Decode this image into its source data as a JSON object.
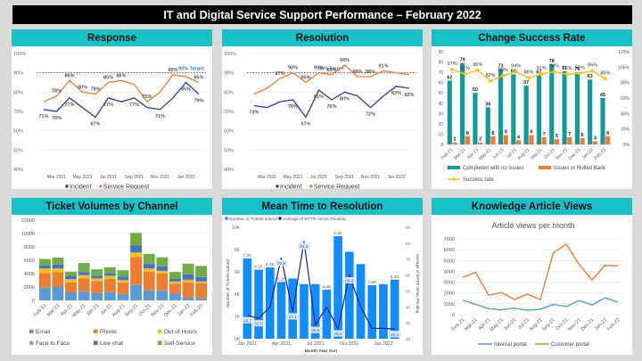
{
  "page_title": "IT and Digital Service Support Performance – February 2022",
  "panels": {
    "response": "Response",
    "resolution": "Resolution",
    "change": "Change Success Rate",
    "tickets": "Ticket Volumes by Channel",
    "mttr": "Mean Time to Resolution",
    "knowledge": "Knowledge Article Views"
  },
  "colors": {
    "teal_header": "#17c1c6",
    "incident": "#2e3a9c",
    "service_request": "#ed7d31",
    "target": "#7f1f2f",
    "target_label": "#2f7fd0"
  },
  "chart_data": [
    {
      "id": "response",
      "type": "line",
      "title": "Response",
      "x": [
        "Feb 2021",
        "Mar 2021",
        "Apr 2021",
        "May 2021",
        "Jun 2021",
        "Jul 2021",
        "Aug 2021",
        "Sep 2021",
        "Oct 2021",
        "Nov 2021",
        "Dec 2021",
        "Jan 2022",
        "Feb 2022"
      ],
      "x_tick_labels": [
        "Mar 2021",
        "May 2021",
        "Jul 2021",
        "Sep 2021",
        "Nov 2021",
        "Jan 2022"
      ],
      "ylim": [
        40,
        100
      ],
      "y_ticks": [
        "40%",
        "50%",
        "60%",
        "70%",
        "80%",
        "90%",
        "100%"
      ],
      "target": 90,
      "target_label": "90% Target",
      "series": [
        {
          "name": "Incident",
          "values": [
            71,
            70,
            77,
            72,
            67,
            77,
            75,
            77,
            72,
            71,
            77,
            85,
            79
          ]
        },
        {
          "name": "Service Request",
          "values": [
            75,
            78,
            86,
            80,
            79,
            85,
            86,
            84,
            75,
            80,
            89,
            88,
            85
          ]
        }
      ],
      "data_labels": [
        {
          "series": 0,
          "index": 0,
          "text": "71%"
        },
        {
          "series": 0,
          "index": 1,
          "text": "70%"
        },
        {
          "series": 0,
          "index": 2,
          "text": "77%"
        },
        {
          "series": 0,
          "index": 4,
          "text": "67%"
        },
        {
          "series": 0,
          "index": 5,
          "text": "77%"
        },
        {
          "series": 0,
          "index": 7,
          "text": "77%"
        },
        {
          "series": 0,
          "index": 9,
          "text": "71%"
        },
        {
          "series": 0,
          "index": 11,
          "text": "85%"
        },
        {
          "series": 0,
          "index": 12,
          "text": "79%"
        },
        {
          "series": 1,
          "index": 1,
          "text": "78%"
        },
        {
          "series": 1,
          "index": 2,
          "text": "86%"
        },
        {
          "series": 1,
          "index": 3,
          "text": "80%"
        },
        {
          "series": 1,
          "index": 4,
          "text": "79%"
        },
        {
          "series": 1,
          "index": 5,
          "text": "85%"
        },
        {
          "series": 1,
          "index": 6,
          "text": "86%"
        },
        {
          "series": 1,
          "index": 8,
          "text": "75%"
        },
        {
          "series": 1,
          "index": 10,
          "text": "89%"
        },
        {
          "series": 1,
          "index": 12,
          "text": "85%"
        }
      ],
      "legend": [
        "Incident",
        "Service Request"
      ],
      "legend_position": "bottom"
    },
    {
      "id": "resolution",
      "type": "line",
      "title": "Resolution",
      "x": [
        "Feb 2021",
        "Mar 2021",
        "Apr 2021",
        "May 2021",
        "Jun 2021",
        "Jul 2021",
        "Aug 2021",
        "Sep 2021",
        "Oct 2021",
        "Nov 2021",
        "Dec 2021",
        "Jan 2022",
        "Feb 2022"
      ],
      "x_tick_labels": [
        "Mar 2021",
        "May 2021",
        "Jul 2021",
        "Sep 2021",
        "Nov 2021",
        "Jan 2022"
      ],
      "ylim": [
        40,
        100
      ],
      "y_ticks": [
        "40%",
        "50%",
        "60%",
        "70%",
        "80%",
        "90%",
        "100%"
      ],
      "target": 90,
      "target_label": "90% Target",
      "series": [
        {
          "name": "Incident",
          "values": [
            73,
            72,
            75,
            76,
            67,
            81,
            76,
            80,
            78,
            72,
            78,
            83,
            82
          ]
        },
        {
          "name": "Service Request",
          "values": [
            79,
            82,
            87,
            90,
            85,
            90,
            89,
            94,
            88,
            88,
            91,
            90,
            89
          ]
        }
      ],
      "data_labels": [
        {
          "series": 0,
          "index": 0,
          "text": "73%"
        },
        {
          "series": 0,
          "index": 3,
          "text": "76%"
        },
        {
          "series": 0,
          "index": 4,
          "text": "67%"
        },
        {
          "series": 0,
          "index": 5,
          "text": "81%"
        },
        {
          "series": 0,
          "index": 6,
          "text": "76%"
        },
        {
          "series": 0,
          "index": 7,
          "text": "80%"
        },
        {
          "series": 0,
          "index": 9,
          "text": "72%"
        },
        {
          "series": 0,
          "index": 11,
          "text": "83%"
        },
        {
          "series": 0,
          "index": 12,
          "text": "82%"
        },
        {
          "series": 1,
          "index": 2,
          "text": "87%"
        },
        {
          "series": 1,
          "index": 3,
          "text": "90%"
        },
        {
          "series": 1,
          "index": 4,
          "text": "85%"
        },
        {
          "series": 1,
          "index": 5,
          "text": "90%"
        },
        {
          "series": 1,
          "index": 6,
          "text": "89%"
        },
        {
          "series": 1,
          "index": 7,
          "text": "94%"
        },
        {
          "series": 1,
          "index": 8,
          "text": "88%"
        },
        {
          "series": 1,
          "index": 9,
          "text": "88%"
        },
        {
          "series": 1,
          "index": 10,
          "text": "91%"
        }
      ],
      "legend": [
        "Incident",
        "Service Request"
      ],
      "legend_position": "bottom"
    },
    {
      "id": "change",
      "type": "bar",
      "title": "Change Success Rate",
      "categories": [
        "Feb-21",
        "Mar-21",
        "Apr-21",
        "May-21",
        "Jun-21",
        "Jul-21",
        "Aug-21",
        "Sep-21",
        "Oct-21",
        "Nov-21",
        "Dec-21",
        "Jan-22",
        "Feb-22"
      ],
      "ylim": [
        0,
        90
      ],
      "y_ticks": [
        "0",
        "10",
        "20",
        "30",
        "40",
        "50",
        "60",
        "70",
        "80",
        "90"
      ],
      "y2lim": [
        0,
        120
      ],
      "y2_ticks": [
        "0%",
        "20%",
        "40%",
        "60%",
        "80%",
        "100%",
        "120%"
      ],
      "series": [
        {
          "name": "Completed with no issues",
          "type": "bar",
          "color": "#13999a",
          "values": [
            62,
            79,
            50,
            36,
            73,
            68,
            57,
            67,
            78,
            71,
            70,
            63,
            45
          ]
        },
        {
          "name": "Issues or Rolled Back",
          "type": "bar",
          "color": "#ed7d31",
          "values": [
            2,
            8,
            2,
            8,
            9,
            4,
            9,
            7,
            5,
            7,
            6,
            3,
            8
          ]
        },
        {
          "name": "Success rate",
          "type": "line",
          "axis": "secondary",
          "color": "#f5c518",
          "values": [
            97,
            91,
            96,
            82,
            89,
            94,
            86,
            91,
            94,
            91,
            92,
            95,
            85
          ]
        }
      ],
      "legend": [
        "Completed with no issues",
        "Issues or Rolled Back",
        "Success rate"
      ],
      "legend_position": "bottom"
    },
    {
      "id": "tickets",
      "type": "bar",
      "stacked": true,
      "title": "Ticket Volumes by Channel",
      "categories": [
        "Feb-21",
        "Mar-21",
        "Apr-21",
        "May-21",
        "Jun-21",
        "Jul-21",
        "Aug-21",
        "Sep-21",
        "Oct-21",
        "Nov-21",
        "Dec-21",
        "Jan-22",
        "Feb-22"
      ],
      "ylim": [
        0,
        12000
      ],
      "y_ticks": [
        "0",
        "2000",
        "4000",
        "6000",
        "8000",
        "10000",
        "12000"
      ],
      "series": [
        {
          "name": "Email",
          "color": "#5b9bd5",
          "values": [
            1900,
            2000,
            1200,
            1350,
            1100,
            1250,
            950,
            2300,
            1500,
            1500,
            1000,
            450,
            350
          ]
        },
        {
          "name": "Phone",
          "color": "#ed7d31",
          "values": [
            2200,
            2200,
            1500,
            1950,
            1800,
            1950,
            1700,
            4200,
            2800,
            2500,
            1500,
            2200,
            2200
          ]
        },
        {
          "name": "Out of Hours",
          "color": "#ffc000",
          "values": [
            600,
            500,
            400,
            400,
            300,
            400,
            300,
            600,
            400,
            350,
            250,
            350,
            200
          ]
        },
        {
          "name": "Face to Face",
          "color": "#a5a5a5",
          "values": [
            100,
            100,
            100,
            100,
            100,
            100,
            100,
            100,
            100,
            100,
            100,
            100,
            100
          ]
        },
        {
          "name": "Live chat",
          "color": "#4472c4",
          "values": [
            450,
            550,
            450,
            400,
            400,
            350,
            500,
            1000,
            650,
            650,
            400,
            800,
            650
          ]
        },
        {
          "name": "Self-Service",
          "color": "#70ad47",
          "values": [
            950,
            1050,
            650,
            1400,
            950,
            900,
            950,
            1900,
            1500,
            1350,
            1000,
            1600,
            1650
          ]
        }
      ],
      "legend": [
        "Email",
        "Phone",
        "Out of Hours",
        "Face to Face",
        "Live chat",
        "Self-Service"
      ],
      "legend_position": "bottom"
    },
    {
      "id": "mttr",
      "type": "bar",
      "title": "Mean Time to Resolution",
      "categories": [
        "Jan 2021",
        "Feb 2021",
        "Mar 2021",
        "Apr 2021",
        "May 2021",
        "Jun 2021",
        "Jul 2021",
        "Aug 2021",
        "Sep 2021",
        "Oct 2021",
        "Nov 2021",
        "Dec 2021",
        "Jan 2022",
        "Feb 2022"
      ],
      "x_tick_labels": [
        "Jan 2021",
        "Apr 2021",
        "Jul 2021",
        "Oct 2021",
        "Jan 2022"
      ],
      "xlabel": "Month Year Sort",
      "ylabel": "Number of Tickets solved",
      "y2label": "Average of MTTR minus Pending",
      "ylim": [
        0,
        10000
      ],
      "y_ticks": [
        "0K",
        "2K",
        "4K",
        "6K",
        "8K",
        "10K"
      ],
      "y2lim": [
        20,
        90
      ],
      "y2_ticks": [
        "20",
        "30",
        "40",
        "50",
        "60",
        "70",
        "80",
        "90"
      ],
      "series": [
        {
          "name": "Number of Tickets solved",
          "type": "bar",
          "color": "#118dff",
          "values": [
            7200,
            6200,
            6400,
            5100,
            5400,
            4900,
            4900,
            4400,
            9200,
            7800,
            6700,
            4800,
            4900,
            5300
          ]
        },
        {
          "name": "Average of MTTR minus Pending",
          "type": "line",
          "axis": "secondary",
          "color": "#12239e",
          "values": [
            34.7,
            32.8,
            40,
            70.8,
            37.1,
            81.3,
            28.6,
            40,
            26.4,
            59.8,
            40,
            26.5,
            26.5,
            26.0
          ]
        }
      ],
      "bar_labels": [
        {
          "index": 0,
          "text": "7.2K"
        },
        {
          "index": 1,
          "text": "6.2K"
        },
        {
          "index": 2,
          "text": "6.4K"
        },
        {
          "index": 3,
          "text": "5.1K"
        },
        {
          "index": 7,
          "text": "4.4K"
        },
        {
          "index": 8,
          "text": "9.2K"
        },
        {
          "index": 11,
          "text": "4.8K"
        },
        {
          "index": 13,
          "text": "5.3K"
        }
      ],
      "line_labels": [
        {
          "index": 0,
          "text": "34.7"
        },
        {
          "index": 1,
          "text": "32.8"
        },
        {
          "index": 3,
          "text": "70.8"
        },
        {
          "index": 4,
          "text": "37.1"
        },
        {
          "index": 5,
          "text": "81.3"
        },
        {
          "index": 6,
          "text": "28.6"
        },
        {
          "index": 8,
          "text": "26.4"
        },
        {
          "index": 9,
          "text": "59.8"
        },
        {
          "index": 13,
          "text": "26.0"
        }
      ],
      "legend": [
        "Number of Tickets solved",
        "Average of MTTR minus Pending"
      ],
      "legend_position": "top-left"
    },
    {
      "id": "knowledge",
      "type": "line",
      "title": "Article views per month",
      "categories": [
        "Feb-21",
        "Mar-21",
        "Apr-21",
        "May-21",
        "Jun-21",
        "Jul-21",
        "Aug-21",
        "Sep-21",
        "Oct-21",
        "Nov-21",
        "Dec-21",
        "Jan-22",
        "Feb-22"
      ],
      "ylim": [
        0,
        7000
      ],
      "y_ticks": [
        "0",
        "1000",
        "2000",
        "3000",
        "4000",
        "5000",
        "6000",
        "7000"
      ],
      "series": [
        {
          "name": "Internal portal",
          "color": "#5b9bd5",
          "values": [
            1350,
            950,
            550,
            450,
            600,
            400,
            500,
            950,
            750,
            1300,
            900,
            1550,
            1150
          ]
        },
        {
          "name": "Customer portal",
          "color": "#ed7d31",
          "values": [
            3450,
            3900,
            1800,
            2050,
            1400,
            1900,
            1400,
            5700,
            6500,
            4650,
            3200,
            4550,
            4500
          ]
        }
      ],
      "legend": [
        "Internal portal",
        "Customer portal"
      ],
      "legend_position": "bottom"
    }
  ]
}
